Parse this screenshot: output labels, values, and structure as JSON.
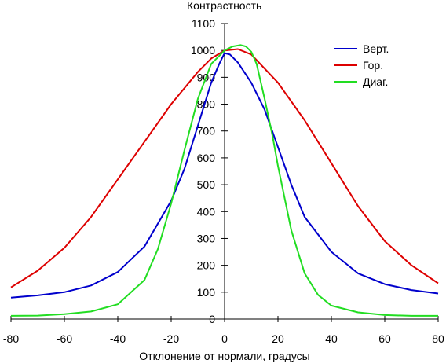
{
  "chart_data": {
    "type": "line",
    "title": "",
    "ylabel": "Контрастность",
    "xlabel": "Отклонение от нормали, градусы",
    "xlim": [
      -80,
      80
    ],
    "ylim": [
      0,
      1100
    ],
    "x_ticks": [
      -80,
      -60,
      -40,
      -20,
      0,
      20,
      40,
      60,
      80
    ],
    "y_ticks": [
      0,
      100,
      200,
      300,
      400,
      500,
      600,
      700,
      800,
      900,
      1000,
      1100
    ],
    "grid": false,
    "legend_position": "top-right",
    "series": [
      {
        "name": "Верт.",
        "color": "#0000cc",
        "x": [
          -80,
          -70,
          -60,
          -50,
          -40,
          -30,
          -20,
          -15,
          -10,
          -5,
          -2,
          0,
          2,
          5,
          10,
          15,
          20,
          25,
          30,
          40,
          50,
          60,
          70,
          80
        ],
        "y": [
          80,
          88,
          100,
          125,
          175,
          270,
          440,
          560,
          720,
          880,
          950,
          990,
          985,
          955,
          880,
          780,
          640,
          500,
          380,
          250,
          170,
          130,
          108,
          95
        ]
      },
      {
        "name": "Гор.",
        "color": "#dd0000",
        "x": [
          -80,
          -70,
          -60,
          -50,
          -40,
          -30,
          -20,
          -10,
          -5,
          0,
          5,
          10,
          20,
          30,
          40,
          50,
          60,
          70,
          80
        ],
        "y": [
          118,
          180,
          265,
          380,
          520,
          660,
          800,
          920,
          970,
          1000,
          1005,
          985,
          880,
          740,
          580,
          420,
          290,
          200,
          133
        ]
      },
      {
        "name": "Диаг.",
        "color": "#22dd22",
        "x": [
          -80,
          -70,
          -60,
          -50,
          -40,
          -30,
          -25,
          -20,
          -15,
          -10,
          -5,
          0,
          3,
          6,
          8,
          10,
          12,
          15,
          18,
          20,
          25,
          30,
          35,
          40,
          50,
          60,
          70,
          80
        ],
        "y": [
          12,
          13,
          18,
          28,
          55,
          145,
          260,
          430,
          630,
          820,
          950,
          1000,
          1015,
          1020,
          1015,
          995,
          950,
          820,
          680,
          570,
          330,
          170,
          90,
          50,
          25,
          15,
          12,
          12
        ]
      }
    ]
  }
}
